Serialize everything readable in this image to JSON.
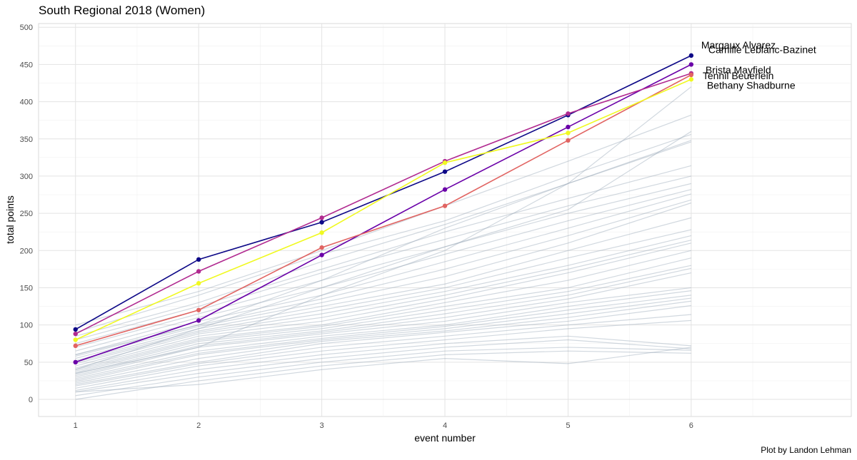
{
  "chart_data": {
    "type": "line",
    "title": "South Regional 2018 (Women)",
    "xlabel": "event number",
    "ylabel": "total points",
    "caption": "Plot by Landon Lehman",
    "xlim": [
      0.7,
      7.3
    ],
    "ylim": [
      -23,
      505
    ],
    "x_ticks": [
      1,
      2,
      3,
      4,
      5,
      6
    ],
    "y_ticks": [
      0,
      50,
      100,
      150,
      200,
      250,
      300,
      350,
      400,
      450,
      500
    ],
    "x": [
      1,
      2,
      3,
      4,
      5,
      6
    ],
    "highlighted_series": [
      {
        "name": "Margaux Alvarez",
        "color": "#0d0887",
        "values": [
          94,
          188,
          238,
          306,
          382,
          462
        ]
      },
      {
        "name": "Camille Leblanc-Bazinet",
        "color": "#6a00a8",
        "values": [
          50,
          106,
          194,
          282,
          366,
          450
        ]
      },
      {
        "name": "Brista Mayfield",
        "color": "#b12a90",
        "values": [
          88,
          172,
          244,
          320,
          384,
          438
        ]
      },
      {
        "name": "Tennil Beuerlein",
        "color": "#e16462",
        "values": [
          72,
          120,
          204,
          260,
          348,
          436
        ]
      },
      {
        "name": "Bethany Shadburne",
        "color": "#f0f921",
        "values": [
          80,
          156,
          224,
          318,
          358,
          430
        ]
      }
    ],
    "background_series": [
      [
        100,
        145,
        200,
        260,
        320,
        382
      ],
      [
        90,
        140,
        195,
        240,
        300,
        356
      ],
      [
        85,
        130,
        185,
        235,
        290,
        346
      ],
      [
        80,
        125,
        175,
        225,
        270,
        314
      ],
      [
        75,
        120,
        170,
        215,
        260,
        300
      ],
      [
        70,
        115,
        160,
        205,
        250,
        290
      ],
      [
        65,
        110,
        150,
        195,
        240,
        282
      ],
      [
        60,
        105,
        140,
        185,
        230,
        276
      ],
      [
        58,
        100,
        135,
        175,
        220,
        268
      ],
      [
        55,
        98,
        130,
        165,
        210,
        264
      ],
      [
        52,
        95,
        125,
        155,
        200,
        244
      ],
      [
        50,
        92,
        120,
        150,
        190,
        228
      ],
      [
        48,
        90,
        115,
        145,
        180,
        220
      ],
      [
        45,
        88,
        110,
        140,
        175,
        214
      ],
      [
        42,
        85,
        105,
        135,
        170,
        210
      ],
      [
        40,
        82,
        100,
        130,
        160,
        200
      ],
      [
        38,
        80,
        98,
        125,
        150,
        190
      ],
      [
        36,
        78,
        95,
        120,
        145,
        180
      ],
      [
        34,
        75,
        92,
        115,
        140,
        176
      ],
      [
        32,
        72,
        90,
        110,
        135,
        170
      ],
      [
        30,
        70,
        88,
        105,
        130,
        150
      ],
      [
        28,
        65,
        85,
        100,
        125,
        146
      ],
      [
        26,
        62,
        82,
        98,
        120,
        140
      ],
      [
        24,
        60,
        80,
        95,
        115,
        136
      ],
      [
        22,
        55,
        78,
        92,
        110,
        132
      ],
      [
        20,
        50,
        75,
        90,
        105,
        126
      ],
      [
        18,
        48,
        70,
        85,
        100,
        114
      ],
      [
        15,
        45,
        65,
        80,
        95,
        106
      ],
      [
        12,
        40,
        60,
        75,
        85,
        72
      ],
      [
        10,
        35,
        55,
        70,
        80,
        68
      ],
      [
        5,
        30,
        50,
        65,
        70,
        66
      ],
      [
        0,
        25,
        45,
        60,
        65,
        62
      ],
      [
        10,
        20,
        40,
        55,
        48,
        70
      ],
      [
        60,
        100,
        160,
        230,
        290,
        420
      ],
      [
        40,
        95,
        150,
        205,
        255,
        360
      ],
      [
        35,
        70,
        140,
        200,
        290,
        348
      ]
    ]
  }
}
